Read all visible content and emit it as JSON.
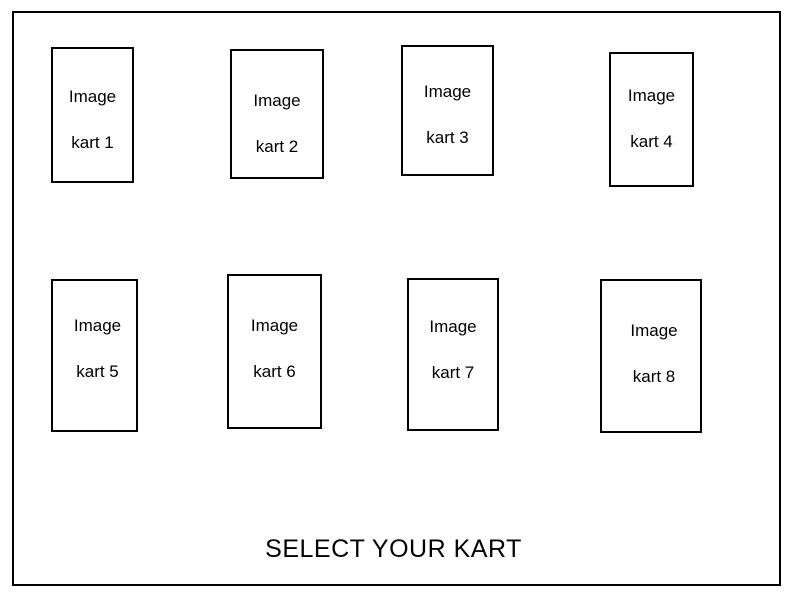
{
  "karts": [
    {
      "image_label": "Image",
      "name": "kart 1"
    },
    {
      "image_label": "Image",
      "name": "kart 2"
    },
    {
      "image_label": "Image",
      "name": "kart 3"
    },
    {
      "image_label": "Image",
      "name": "kart 4"
    },
    {
      "image_label": "Image",
      "name": "kart 5"
    },
    {
      "image_label": "Image",
      "name": "kart 6"
    },
    {
      "image_label": "Image",
      "name": "kart 7"
    },
    {
      "image_label": "Image",
      "name": "kart 8"
    }
  ],
  "title": "SELECT YOUR KART"
}
